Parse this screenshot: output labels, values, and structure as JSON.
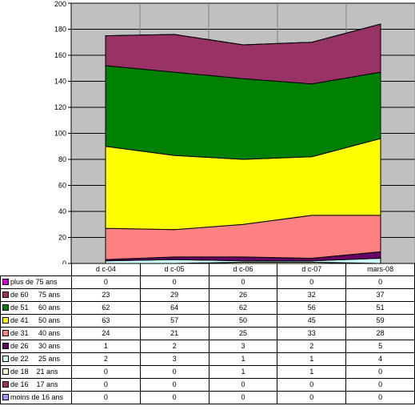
{
  "chart_data": {
    "type": "area",
    "stacked": true,
    "categories": [
      "d c-04",
      "d c-05",
      "d c-06",
      "d c-07",
      "mars-08"
    ],
    "ylim": [
      0,
      200
    ],
    "y_ticks": [
      "0",
      "20",
      "40",
      "60",
      "80",
      "100",
      "120",
      "140",
      "160",
      "180",
      "200"
    ],
    "grid": true,
    "legend_placement": "data table below chart",
    "series": [
      {
        "name": "moins de 16 ans",
        "color": "#9999ff",
        "values": [
          0,
          0,
          0,
          0,
          0
        ],
        "cells": [
          "0",
          "0",
          "0",
          "0",
          "0"
        ]
      },
      {
        "name": "de 16    17 ans",
        "color": "#993366",
        "values": [
          0,
          0,
          0,
          0,
          0
        ],
        "cells": [
          "0",
          "0",
          "0",
          "0",
          "0"
        ]
      },
      {
        "name": "de 18    21 ans",
        "color": "#ffffcc",
        "values": [
          0,
          0,
          1,
          1,
          0
        ],
        "cells": [
          "0",
          "0",
          "1",
          "1",
          "0"
        ]
      },
      {
        "name": "de 22     25 ans",
        "color": "#ccffff",
        "values": [
          2,
          3,
          1,
          1,
          4
        ],
        "cells": [
          "2",
          "3",
          "1",
          "1",
          "4"
        ]
      },
      {
        "name": "de 26     30 ans",
        "color": "#660066",
        "values": [
          1,
          2,
          3,
          2,
          5
        ],
        "cells": [
          "1",
          "2",
          "3",
          "2",
          "5"
        ]
      },
      {
        "name": "de 31     40 ans",
        "color": "#ff8080",
        "values": [
          24,
          21,
          25,
          33,
          28
        ],
        "cells": [
          "24",
          "21",
          "25",
          "33",
          "28"
        ]
      },
      {
        "name": "de 41     50 ans",
        "color": "#ffff00",
        "values": [
          63,
          57,
          50,
          45,
          59
        ],
        "cells": [
          "63",
          "57",
          "50",
          "45",
          "59"
        ]
      },
      {
        "name": "de 51     60 ans",
        "color": "#008000",
        "values": [
          62,
          64,
          62,
          56,
          51
        ],
        "cells": [
          "62",
          "64",
          "62",
          "56",
          "51"
        ]
      },
      {
        "name": "de 60     75 ans",
        "color": "#993366",
        "values": [
          23,
          29,
          26,
          32,
          37
        ],
        "cells": [
          "23",
          "29",
          "26",
          "32",
          "37"
        ]
      },
      {
        "name": "plus de 75 ans",
        "color": "#cc00cc",
        "values": [
          0,
          0,
          0,
          0,
          0
        ],
        "cells": [
          "0",
          "0",
          "0",
          "0",
          "0"
        ]
      }
    ]
  }
}
